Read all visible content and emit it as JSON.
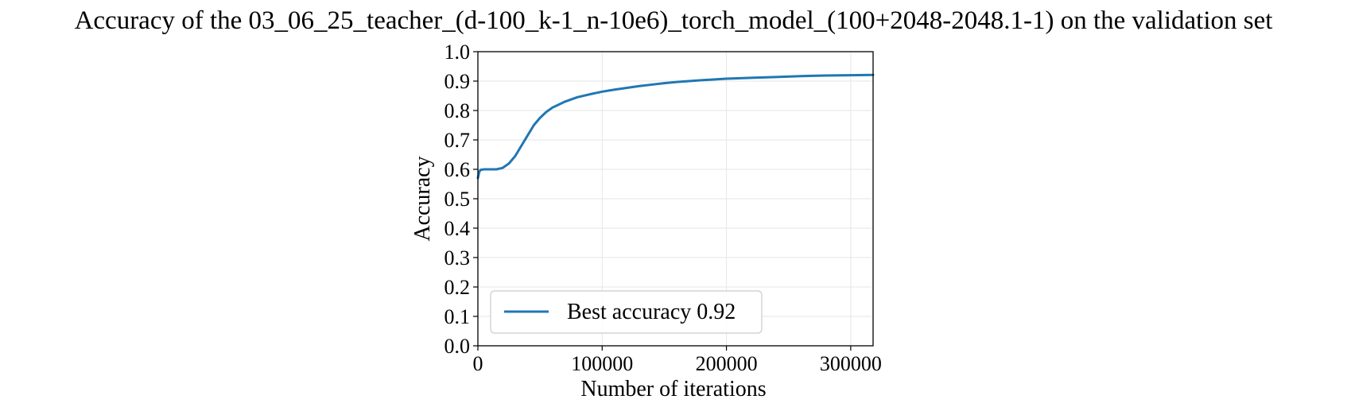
{
  "colors": {
    "series": "#1f77b4",
    "grid": "#e6e6e6",
    "axes": "#000000",
    "legend_border": "#cccccc"
  },
  "chart_data": {
    "type": "line",
    "title": "Accuracy of the 03_06_25_teacher_(d-100_k-1_n-10e6)_torch_model_(100+2048-2048.1-1) on the validation set",
    "xlabel": "Number of iterations",
    "ylabel": "Accuracy",
    "xlim": [
      0,
      318000
    ],
    "ylim": [
      0.0,
      1.0
    ],
    "grid": true,
    "legend_position": "lower-left",
    "x_ticks": [
      0,
      100000,
      200000,
      300000
    ],
    "x_tick_labels": [
      "0",
      "100000",
      "200000",
      "300000"
    ],
    "y_ticks": [
      0.0,
      0.1,
      0.2,
      0.3,
      0.4,
      0.5,
      0.6,
      0.7,
      0.8,
      0.9,
      1.0
    ],
    "y_tick_labels": [
      "0.0",
      "0.1",
      "0.2",
      "0.3",
      "0.4",
      "0.5",
      "0.6",
      "0.7",
      "0.8",
      "0.9",
      "1.0"
    ],
    "series": [
      {
        "name": "Best accuracy 0.92",
        "x": [
          0,
          1000,
          2000,
          5000,
          10000,
          15000,
          20000,
          25000,
          30000,
          35000,
          40000,
          45000,
          50000,
          55000,
          60000,
          65000,
          70000,
          80000,
          90000,
          100000,
          110000,
          120000,
          130000,
          140000,
          150000,
          160000,
          180000,
          200000,
          220000,
          240000,
          260000,
          280000,
          300000,
          318000
        ],
        "y": [
          0.57,
          0.59,
          0.598,
          0.6,
          0.6,
          0.6,
          0.605,
          0.62,
          0.645,
          0.68,
          0.715,
          0.75,
          0.775,
          0.795,
          0.81,
          0.82,
          0.83,
          0.845,
          0.855,
          0.864,
          0.871,
          0.877,
          0.883,
          0.888,
          0.893,
          0.897,
          0.903,
          0.908,
          0.911,
          0.914,
          0.917,
          0.919,
          0.92,
          0.921
        ]
      }
    ]
  }
}
